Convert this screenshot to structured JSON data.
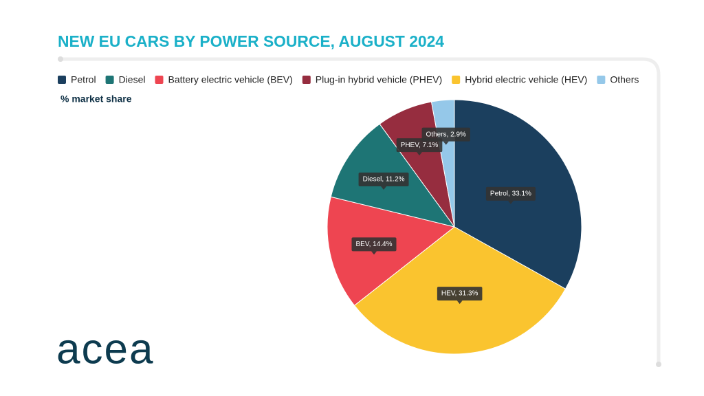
{
  "chart_data": {
    "type": "pie",
    "title": "NEW EU CARS BY POWER SOURCE, AUGUST 2024",
    "subtitle": "% market share",
    "legend": [
      {
        "name": "Petrol",
        "color": "#1b3f5e"
      },
      {
        "name": "Diesel",
        "color": "#1e7575"
      },
      {
        "name": "Battery electric vehicle (BEV)",
        "color": "#ee4551"
      },
      {
        "name": "Plug-in hybrid vehicle (PHEV)",
        "color": "#962d3f"
      },
      {
        "name": "Hybrid electric vehicle (HEV)",
        "color": "#fac42f"
      },
      {
        "name": "Others",
        "color": "#95c8e9"
      }
    ],
    "values": [
      33.1,
      31.3,
      14.4,
      11.2,
      7.1,
      2.9
    ],
    "value_labels": [
      "Petrol, 33.1%",
      "HEV, 31.3%",
      "BEV, 14.4%",
      "Diesel, 11.2%",
      "PHEV, 7.1%",
      "Others, 2.9%"
    ],
    "colors": [
      "#1b3f5e",
      "#fac42f",
      "#ee4551",
      "#1e7575",
      "#962d3f",
      "#95c8e9"
    ]
  },
  "logo": "acea"
}
